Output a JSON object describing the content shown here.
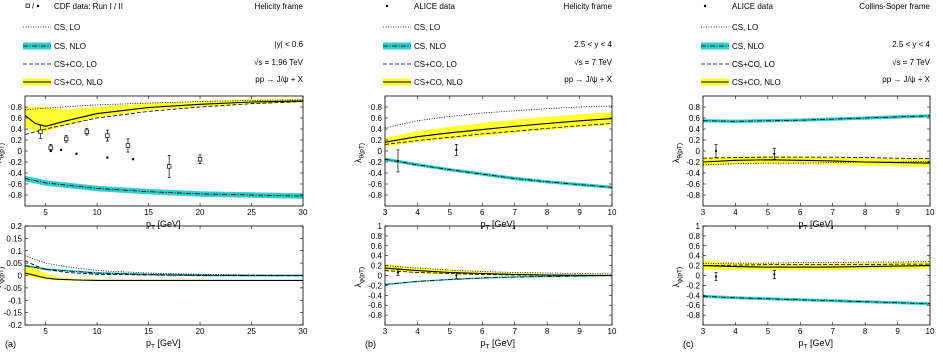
{
  "colors": {
    "nlo_band": "#33cccc",
    "co_band": "#ffff33",
    "line": "#000000",
    "frame": "#000000"
  },
  "legend_labels": {
    "cs_lo": "CS, LO",
    "cs_nlo": "CS, NLO",
    "csco_lo": "CS+CO, LO",
    "csco_nlo": "CS+CO, NLO"
  },
  "panels": [
    {
      "id": "a",
      "tag": "(a)",
      "frame_label": "Helicity frame",
      "data_label": "CDF data: Run I / II",
      "data_marker": "open-square/dot",
      "info_lines": [
        "|y| < 0.6",
        "√s = 1.96 TeV",
        "pp → J/ψ + X"
      ],
      "xlabel": "pT [GeV]",
      "xlim": [
        3,
        30
      ],
      "xticks": [
        5,
        10,
        15,
        20,
        25,
        30
      ],
      "top": {
        "ylabel": "λθ(pT)",
        "ylim": [
          -1,
          1
        ],
        "yticks": [
          -0.8,
          -0.6,
          -0.4,
          -0.2,
          0,
          0.2,
          0.4,
          0.6,
          0.8
        ],
        "series": {
          "cs_lo": {
            "x": [
              3,
              5,
              10,
              15,
              20,
              25,
              30
            ],
            "y": [
              0.75,
              0.78,
              0.84,
              0.87,
              0.9,
              0.92,
              0.93
            ]
          },
          "cs_nlo": {
            "x": [
              3,
              5,
              10,
              15,
              20,
              25,
              30
            ],
            "y": [
              -0.5,
              -0.58,
              -0.68,
              -0.74,
              -0.78,
              -0.8,
              -0.82
            ],
            "band": 0.05
          },
          "csco_lo": {
            "x": [
              3,
              5,
              10,
              15,
              20,
              25,
              30
            ],
            "y": [
              0.3,
              0.4,
              0.6,
              0.72,
              0.8,
              0.86,
              0.9
            ]
          },
          "csco_nlo": {
            "x": [
              3,
              4,
              5,
              7,
              10,
              15,
              20,
              25,
              30
            ],
            "y": [
              0.65,
              0.5,
              0.45,
              0.55,
              0.68,
              0.79,
              0.85,
              0.89,
              0.91
            ],
            "band_lo": [
              -0.2,
              -0.15,
              -0.1,
              -0.08,
              -0.07,
              -0.05,
              -0.04,
              -0.03,
              -0.03
            ],
            "band_hi": [
              0.15,
              0.3,
              0.35,
              0.2,
              0.12,
              0.08,
              0.06,
              0.05,
              0.04
            ]
          }
        },
        "data_run1": [
          {
            "x": 5.5,
            "y": 0.0
          },
          {
            "x": 6.5,
            "y": 0.02
          },
          {
            "x": 8.0,
            "y": -0.05
          },
          {
            "x": 11.0,
            "y": -0.12
          },
          {
            "x": 13.5,
            "y": -0.15
          }
        ],
        "data_run2": [
          {
            "x": 4.5,
            "y": 0.35,
            "err": 0.12
          },
          {
            "x": 5.5,
            "y": 0.06,
            "err": 0.06
          },
          {
            "x": 7.0,
            "y": 0.22,
            "err": 0.06
          },
          {
            "x": 9.0,
            "y": 0.35,
            "err": 0.06
          },
          {
            "x": 11.0,
            "y": 0.28,
            "err": 0.1
          },
          {
            "x": 13.0,
            "y": 0.1,
            "err": 0.12
          },
          {
            "x": 17.0,
            "y": -0.28,
            "err": 0.2
          },
          {
            "x": 20.0,
            "y": -0.15,
            "err": 0.08
          }
        ]
      },
      "bottom": {
        "ylabel": "λφ(pT)",
        "ylim": [
          -0.2,
          0.2
        ],
        "yticks": [
          -0.2,
          -0.15,
          -0.1,
          -0.05,
          0,
          0.05,
          0.1,
          0.15,
          0.2
        ],
        "series": {
          "cs_lo": {
            "x": [
              3,
              4,
              5,
              7,
              10,
              15,
              20,
              25,
              30
            ],
            "y": [
              0.08,
              0.065,
              0.05,
              0.035,
              0.02,
              0.01,
              0.005,
              0.002,
              0.0
            ]
          },
          "cs_nlo": {
            "x": [
              3,
              5,
              10,
              15,
              20,
              25,
              30
            ],
            "y": [
              0.04,
              0.025,
              0.01,
              0.004,
              0.001,
              0.0,
              0.0
            ],
            "band": 0.004
          },
          "csco_lo": {
            "x": [
              3,
              4,
              5,
              7,
              10,
              15,
              20,
              25,
              30
            ],
            "y": [
              0.06,
              0.04,
              0.025,
              0.012,
              0.005,
              0.002,
              0.001,
              0.0,
              0.0
            ]
          },
          "csco_nlo": {
            "x": [
              3,
              4,
              5,
              6,
              8,
              10,
              15,
              20,
              25,
              30
            ],
            "y": [
              0.01,
              0.0,
              -0.01,
              -0.015,
              -0.018,
              -0.02,
              -0.02,
              -0.02,
              -0.02,
              -0.02
            ],
            "band_lo": [
              -0.01,
              -0.01,
              -0.006,
              -0.004,
              -0.003,
              -0.002,
              -0.002,
              -0.002,
              -0.002,
              -0.002
            ],
            "band_hi": [
              0.03,
              0.03,
              0.02,
              0.01,
              0.005,
              0.004,
              0.003,
              0.003,
              0.002,
              0.002
            ]
          }
        }
      }
    },
    {
      "id": "b",
      "tag": "(b)",
      "frame_label": "Helicity frame",
      "data_label": "ALICE data",
      "data_marker": "dot",
      "info_lines": [
        "2.5 < y < 4",
        "√s = 7 TeV",
        "pp → J/ψ + X"
      ],
      "xlabel": "pT [GeV]",
      "xlim": [
        3,
        10
      ],
      "xticks": [
        3,
        4,
        5,
        6,
        7,
        8,
        9,
        10
      ],
      "top": {
        "ylabel": "λθ(pT)",
        "ylim": [
          -1,
          1
        ],
        "yticks": [
          -0.8,
          -0.6,
          -0.4,
          -0.2,
          0,
          0.2,
          0.4,
          0.6,
          0.8
        ],
        "series": {
          "cs_lo": {
            "x": [
              3,
              4,
              5,
              6,
              7,
              8,
              9,
              10
            ],
            "y": [
              0.42,
              0.55,
              0.63,
              0.69,
              0.73,
              0.77,
              0.8,
              0.82
            ]
          },
          "cs_nlo": {
            "x": [
              3,
              4,
              5,
              6,
              7,
              8,
              9,
              10
            ],
            "y": [
              -0.15,
              -0.25,
              -0.34,
              -0.42,
              -0.5,
              -0.56,
              -0.61,
              -0.66
            ],
            "band": 0.03
          },
          "csco_lo": {
            "x": [
              3,
              4,
              5,
              6,
              7,
              8,
              9,
              10
            ],
            "y": [
              0.12,
              0.19,
              0.25,
              0.31,
              0.36,
              0.41,
              0.46,
              0.5
            ]
          },
          "csco_nlo": {
            "x": [
              3,
              4,
              5,
              6,
              7,
              8,
              9,
              10
            ],
            "y": [
              0.16,
              0.26,
              0.33,
              0.39,
              0.45,
              0.5,
              0.55,
              0.59
            ],
            "band_lo": [
              -0.08,
              -0.1,
              -0.11,
              -0.12,
              -0.12,
              -0.12,
              -0.12,
              -0.12
            ],
            "band_hi": [
              0.08,
              0.1,
              0.11,
              0.12,
              0.12,
              0.12,
              0.12,
              0.12
            ]
          }
        },
        "data": [
          {
            "x": 3.4,
            "y": -0.18,
            "err": 0.2
          },
          {
            "x": 5.2,
            "y": 0.02,
            "err": 0.1
          }
        ]
      },
      "bottom": {
        "ylabel": "λφ(pT)",
        "ylim": [
          -1,
          1
        ],
        "yticks": [
          -0.8,
          -0.6,
          -0.4,
          -0.2,
          0,
          0.2,
          0.4,
          0.6,
          0.8,
          1
        ],
        "series": {
          "cs_lo": {
            "x": [
              3,
              4,
              5,
              6,
              7,
              8,
              9,
              10
            ],
            "y": [
              0.2,
              0.15,
              0.11,
              0.08,
              0.06,
              0.05,
              0.04,
              0.03
            ]
          },
          "cs_nlo": {
            "x": [
              3,
              4,
              5,
              6,
              7,
              8,
              9,
              10
            ],
            "y": [
              -0.18,
              -0.12,
              -0.08,
              -0.05,
              -0.03,
              -0.02,
              -0.01,
              0.0
            ],
            "band": 0.015
          },
          "csco_lo": {
            "x": [
              3,
              4,
              5,
              6,
              7,
              8,
              9,
              10
            ],
            "y": [
              0.1,
              0.06,
              0.04,
              0.02,
              0.01,
              0.005,
              0.0,
              0.0
            ]
          },
          "csco_nlo": {
            "x": [
              3,
              4,
              5,
              6,
              7,
              8,
              9,
              10
            ],
            "y": [
              0.15,
              0.1,
              0.06,
              0.04,
              0.02,
              0.01,
              0.005,
              0.0
            ],
            "band_lo": [
              -0.06,
              -0.05,
              -0.04,
              -0.03,
              -0.02,
              -0.02,
              -0.02,
              -0.02
            ],
            "band_hi": [
              0.08,
              0.06,
              0.05,
              0.04,
              0.03,
              0.02,
              0.02,
              0.02
            ]
          }
        },
        "data": [
          {
            "x": 3.4,
            "y": 0.06,
            "err": 0.06
          },
          {
            "x": 5.2,
            "y": 0.0,
            "err": 0.06
          }
        ]
      }
    },
    {
      "id": "c",
      "tag": "(c)",
      "frame_label": "Collins-Soper frame",
      "data_label": "ALICE data",
      "data_marker": "dot",
      "info_lines": [
        "2.5 < y < 4",
        "√s = 7 TeV",
        "pp → J/ψ + X"
      ],
      "xlabel": "pT [GeV]",
      "xlim": [
        3,
        10
      ],
      "xticks": [
        3,
        4,
        5,
        6,
        7,
        8,
        9,
        10
      ],
      "top": {
        "ylabel": "λθ(pT)",
        "ylim": [
          -1,
          1
        ],
        "yticks": [
          -0.8,
          -0.6,
          -0.4,
          -0.2,
          0,
          0.2,
          0.4,
          0.6,
          0.8
        ],
        "series": {
          "cs_lo": {
            "x": [
              3,
              4,
              5,
              6,
              7,
              8,
              9,
              10
            ],
            "y": [
              -0.25,
              -0.23,
              -0.22,
              -0.22,
              -0.21,
              -0.2,
              -0.2,
              -0.19
            ]
          },
          "cs_nlo": {
            "x": [
              3,
              4,
              5,
              6,
              7,
              8,
              9,
              10
            ],
            "y": [
              0.55,
              0.54,
              0.55,
              0.56,
              0.58,
              0.6,
              0.62,
              0.64
            ],
            "band": 0.03
          },
          "csco_lo": {
            "x": [
              3,
              4,
              5,
              6,
              7,
              8,
              9,
              10
            ],
            "y": [
              -0.13,
              -0.12,
              -0.11,
              -0.11,
              -0.11,
              -0.12,
              -0.13,
              -0.14
            ]
          },
          "csco_nlo": {
            "x": [
              3,
              4,
              5,
              6,
              7,
              8,
              9,
              10
            ],
            "y": [
              -0.2,
              -0.17,
              -0.16,
              -0.17,
              -0.18,
              -0.2,
              -0.21,
              -0.22
            ],
            "band_lo": [
              -0.08,
              -0.07,
              -0.07,
              -0.07,
              -0.07,
              -0.07,
              -0.07,
              -0.07
            ],
            "band_hi": [
              0.08,
              0.07,
              0.07,
              0.07,
              0.07,
              0.07,
              0.07,
              0.07
            ]
          }
        },
        "data": [
          {
            "x": 3.4,
            "y": 0.0,
            "err": 0.12
          },
          {
            "x": 5.2,
            "y": -0.05,
            "err": 0.1
          }
        ]
      },
      "bottom": {
        "ylabel": "λφ(pT)",
        "ylim": [
          -1,
          1
        ],
        "yticks": [
          -0.8,
          -0.6,
          -0.4,
          -0.2,
          0,
          0.2,
          0.4,
          0.6,
          0.8,
          1
        ],
        "series": {
          "cs_lo": {
            "x": [
              3,
              4,
              5,
              6,
              7,
              8,
              9,
              10
            ],
            "y": [
              0.24,
              0.25,
              0.25,
              0.26,
              0.26,
              0.27,
              0.27,
              0.28
            ]
          },
          "cs_nlo": {
            "x": [
              3,
              4,
              5,
              6,
              7,
              8,
              9,
              10
            ],
            "y": [
              -0.42,
              -0.45,
              -0.47,
              -0.49,
              -0.51,
              -0.53,
              -0.55,
              -0.57
            ],
            "band": 0.03
          },
          "csco_lo": {
            "x": [
              3,
              4,
              5,
              6,
              7,
              8,
              9,
              10
            ],
            "y": [
              0.2,
              0.21,
              0.22,
              0.22,
              0.22,
              0.22,
              0.23,
              0.23
            ]
          },
          "csco_nlo": {
            "x": [
              3,
              4,
              5,
              6,
              7,
              8,
              9,
              10
            ],
            "y": [
              0.2,
              0.18,
              0.17,
              0.17,
              0.17,
              0.18,
              0.19,
              0.2
            ],
            "band_lo": [
              -0.08,
              -0.07,
              -0.06,
              -0.06,
              -0.06,
              -0.06,
              -0.06,
              -0.06
            ],
            "band_hi": [
              0.1,
              0.08,
              0.07,
              0.07,
              0.07,
              0.07,
              0.07,
              0.07
            ]
          }
        },
        "data": [
          {
            "x": 3.4,
            "y": -0.02,
            "err": 0.08
          },
          {
            "x": 5.2,
            "y": 0.02,
            "err": 0.08
          }
        ]
      }
    }
  ],
  "chart_data": [
    {
      "type": "line",
      "panel": "a-top",
      "xlabel": "pT [GeV]",
      "ylabel": "λθ(pT)",
      "xlim": [
        3,
        30
      ],
      "ylim": [
        -1,
        1
      ]
    },
    {
      "type": "line",
      "panel": "a-bottom",
      "xlabel": "pT [GeV]",
      "ylabel": "λφ(pT)",
      "xlim": [
        3,
        30
      ],
      "ylim": [
        -0.2,
        0.2
      ]
    },
    {
      "type": "line",
      "panel": "b-top",
      "xlabel": "pT [GeV]",
      "ylabel": "λθ(pT)",
      "xlim": [
        3,
        10
      ],
      "ylim": [
        -1,
        1
      ]
    },
    {
      "type": "line",
      "panel": "b-bottom",
      "xlabel": "pT [GeV]",
      "ylabel": "λφ(pT)",
      "xlim": [
        3,
        10
      ],
      "ylim": [
        -1,
        1
      ]
    },
    {
      "type": "line",
      "panel": "c-top",
      "xlabel": "pT [GeV]",
      "ylabel": "λθ(pT)",
      "xlim": [
        3,
        10
      ],
      "ylim": [
        -1,
        1
      ]
    },
    {
      "type": "line",
      "panel": "c-bottom",
      "xlabel": "pT [GeV]",
      "ylabel": "λφ(pT)",
      "xlim": [
        3,
        10
      ],
      "ylim": [
        -1,
        1
      ]
    }
  ]
}
